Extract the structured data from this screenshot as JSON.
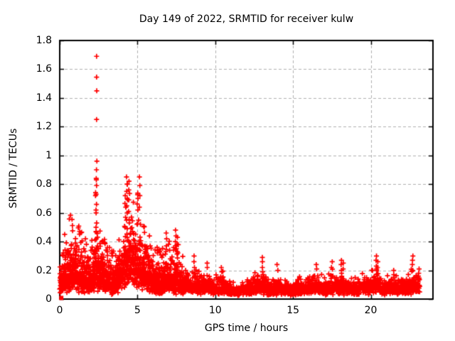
{
  "page": {
    "background": "#ffffff"
  },
  "chart_data": {
    "type": "scatter",
    "title": "Day 149 of 2022, SRMTID for receiver kulw",
    "xlabel": "GPS time / hours",
    "ylabel": "SRMTID / TECUs",
    "series_name": "SRMTID",
    "xlim": [
      0,
      24
    ],
    "ylim": [
      0,
      1.8
    ],
    "x_ticks": [
      0,
      5,
      10,
      15,
      20
    ],
    "x_tick_labels": [
      "0",
      "5",
      "10",
      "15",
      "20"
    ],
    "y_ticks": [
      0,
      0.2,
      0.4,
      0.6,
      0.8,
      1,
      1.2,
      1.4,
      1.6,
      1.8
    ],
    "y_tick_labels": [
      "0",
      "0.2",
      "0.4",
      "0.6",
      "0.8",
      "1",
      "1.2",
      "1.4",
      "1.6",
      "1.8"
    ],
    "grid": true,
    "grid_color": "#b0b0b0",
    "axis_color": "#000000",
    "text_color": "#000000",
    "marker": "plus",
    "marker_color": "#ff0000",
    "data_start_hour": 0.02,
    "data_end_hour": 23.15,
    "sample_step_hours": 0.008,
    "extra_density_until_hour": 8,
    "extra_density_step": 0.013,
    "noise_sigma_early": 0.5,
    "noise_sigma_late": 0.36,
    "y_floor": 0.012,
    "seed": 149,
    "envelope_typ_hi": [
      [
        0.05,
        0.1,
        0.35
      ],
      [
        0.25,
        0.15,
        0.47
      ],
      [
        0.75,
        0.2,
        0.62
      ],
      [
        1.2,
        0.18,
        0.55
      ],
      [
        1.8,
        0.15,
        0.42
      ],
      [
        2.2,
        0.16,
        0.45
      ],
      [
        2.35,
        0.27,
        0.96
      ],
      [
        2.55,
        0.19,
        0.52
      ],
      [
        3.0,
        0.13,
        0.38
      ],
      [
        3.6,
        0.12,
        0.33
      ],
      [
        4.05,
        0.2,
        0.58
      ],
      [
        4.35,
        0.3,
        0.85
      ],
      [
        4.75,
        0.26,
        0.7
      ],
      [
        5.15,
        0.24,
        0.83
      ],
      [
        5.6,
        0.17,
        0.5
      ],
      [
        6.1,
        0.13,
        0.38
      ],
      [
        6.55,
        0.12,
        0.33
      ],
      [
        6.85,
        0.14,
        0.46
      ],
      [
        7.2,
        0.13,
        0.38
      ],
      [
        7.5,
        0.15,
        0.48
      ],
      [
        7.9,
        0.1,
        0.3
      ],
      [
        8.4,
        0.09,
        0.24
      ],
      [
        8.7,
        0.1,
        0.3
      ],
      [
        9.1,
        0.08,
        0.22
      ],
      [
        9.5,
        0.09,
        0.25
      ],
      [
        10.0,
        0.07,
        0.18
      ],
      [
        10.4,
        0.08,
        0.22
      ],
      [
        10.9,
        0.06,
        0.15
      ],
      [
        11.25,
        0.045,
        0.11
      ],
      [
        11.8,
        0.06,
        0.16
      ],
      [
        12.4,
        0.07,
        0.19
      ],
      [
        13.05,
        0.09,
        0.29
      ],
      [
        13.5,
        0.06,
        0.15
      ],
      [
        14.0,
        0.07,
        0.24
      ],
      [
        14.5,
        0.06,
        0.14
      ],
      [
        14.85,
        0.05,
        0.11
      ],
      [
        15.3,
        0.07,
        0.17
      ],
      [
        16.0,
        0.07,
        0.16
      ],
      [
        16.5,
        0.08,
        0.24
      ],
      [
        17.0,
        0.07,
        0.19
      ],
      [
        17.5,
        0.08,
        0.26
      ],
      [
        18.1,
        0.09,
        0.27
      ],
      [
        18.7,
        0.06,
        0.15
      ],
      [
        19.2,
        0.07,
        0.17
      ],
      [
        19.6,
        0.08,
        0.2
      ],
      [
        20.35,
        0.1,
        0.29
      ],
      [
        20.9,
        0.07,
        0.16
      ],
      [
        21.5,
        0.08,
        0.2
      ],
      [
        22.1,
        0.07,
        0.18
      ],
      [
        22.7,
        0.1,
        0.29
      ],
      [
        23.15,
        0.08,
        0.21
      ]
    ],
    "spike_columns": [
      [
        2.33,
        [
          0.83,
          0.72,
          0.62,
          0.5
        ]
      ],
      [
        2.36,
        [
          0.96,
          0.9,
          0.84,
          0.79,
          0.73,
          0.66,
          0.6,
          0.53,
          0.47
        ]
      ],
      [
        4.22,
        [
          0.72,
          0.64,
          0.57,
          0.5
        ]
      ],
      [
        4.32,
        [
          0.85,
          0.8,
          0.75,
          0.7,
          0.65,
          0.6,
          0.55,
          0.49,
          0.43
        ]
      ],
      [
        4.45,
        [
          0.82,
          0.76,
          0.69,
          0.61,
          0.53
        ]
      ],
      [
        5.05,
        [
          0.7,
          0.62,
          0.55
        ]
      ],
      [
        5.15,
        [
          0.85,
          0.79,
          0.72,
          0.64
        ]
      ],
      [
        6.85,
        [
          0.46,
          0.42,
          0.37,
          0.33
        ]
      ],
      [
        7.45,
        [
          0.48,
          0.44,
          0.4,
          0.35
        ]
      ],
      [
        7.55,
        [
          0.43,
          0.38,
          0.33
        ]
      ],
      [
        8.65,
        [
          0.3,
          0.26,
          0.22
        ]
      ],
      [
        9.5,
        [
          0.25,
          0.22
        ]
      ],
      [
        10.4,
        [
          0.22,
          0.19
        ]
      ],
      [
        13.05,
        [
          0.29,
          0.26,
          0.22,
          0.19
        ]
      ],
      [
        14.0,
        [
          0.24,
          0.2
        ]
      ],
      [
        16.5,
        [
          0.24,
          0.21
        ]
      ],
      [
        17.5,
        [
          0.26,
          0.22
        ]
      ],
      [
        18.1,
        [
          0.27,
          0.24,
          0.2
        ]
      ],
      [
        18.25,
        [
          0.25,
          0.21
        ]
      ],
      [
        20.35,
        [
          0.3,
          0.27,
          0.23,
          0.2
        ]
      ],
      [
        20.45,
        [
          0.26,
          0.22
        ]
      ],
      [
        21.5,
        [
          0.2,
          0.17
        ]
      ],
      [
        22.7,
        [
          0.3,
          0.27,
          0.24,
          0.2
        ]
      ],
      [
        23.1,
        [
          0.21,
          0.18
        ]
      ]
    ],
    "outliers": [
      [
        2.37,
        1.69
      ],
      [
        2.37,
        1.545
      ],
      [
        2.38,
        1.45
      ],
      [
        2.37,
        1.25
      ]
    ],
    "origin_cluster": {
      "hour": 0.1,
      "value": 0.008,
      "extra_points": [
        [
          0.0,
          0.07
        ],
        [
          0.02,
          0.13
        ]
      ]
    }
  }
}
